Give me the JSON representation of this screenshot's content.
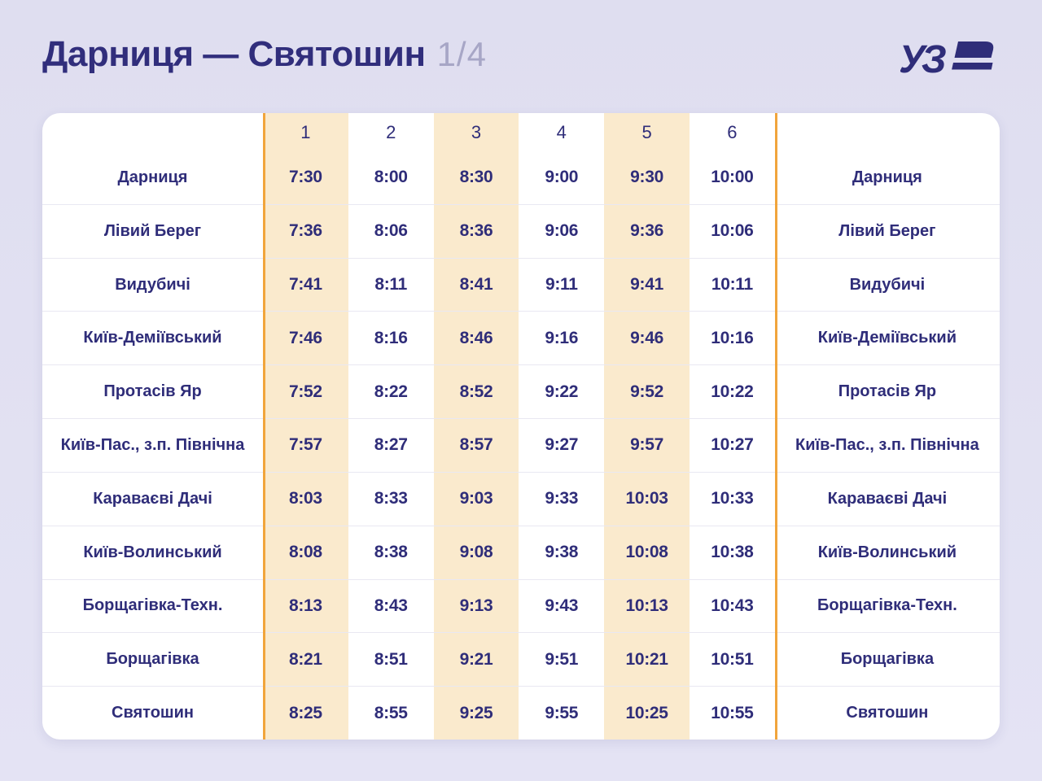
{
  "header": {
    "title": "Дарниця — Святошин",
    "page_indicator": "1/4",
    "logo_text": "УЗ"
  },
  "table": {
    "train_numbers": [
      "1",
      "2",
      "3",
      "4",
      "5",
      "6"
    ],
    "highlight_columns": [
      0,
      2,
      4
    ],
    "rows": [
      {
        "station": "Дарниця",
        "times": [
          "7:30",
          "8:00",
          "8:30",
          "9:00",
          "9:30",
          "10:00"
        ]
      },
      {
        "station": "Лівий Берег",
        "times": [
          "7:36",
          "8:06",
          "8:36",
          "9:06",
          "9:36",
          "10:06"
        ]
      },
      {
        "station": "Видубичі",
        "times": [
          "7:41",
          "8:11",
          "8:41",
          "9:11",
          "9:41",
          "10:11"
        ]
      },
      {
        "station": "Київ-Деміївський",
        "times": [
          "7:46",
          "8:16",
          "8:46",
          "9:16",
          "9:46",
          "10:16"
        ]
      },
      {
        "station": "Протасів Яр",
        "times": [
          "7:52",
          "8:22",
          "8:52",
          "9:22",
          "9:52",
          "10:22"
        ]
      },
      {
        "station": "Київ-Пас., з.п. Північна",
        "times": [
          "7:57",
          "8:27",
          "8:57",
          "9:27",
          "9:57",
          "10:27"
        ]
      },
      {
        "station": "Караваєві Дачі",
        "times": [
          "8:03",
          "8:33",
          "9:03",
          "9:33",
          "10:03",
          "10:33"
        ]
      },
      {
        "station": "Київ-Волинський",
        "times": [
          "8:08",
          "8:38",
          "9:08",
          "9:38",
          "10:08",
          "10:38"
        ]
      },
      {
        "station": "Борщагівка-Техн.",
        "times": [
          "8:13",
          "8:43",
          "9:13",
          "9:43",
          "10:13",
          "10:43"
        ]
      },
      {
        "station": "Борщагівка",
        "times": [
          "8:21",
          "8:51",
          "9:21",
          "9:51",
          "10:21",
          "10:51"
        ]
      },
      {
        "station": "Святошин",
        "times": [
          "8:25",
          "8:55",
          "9:25",
          "9:55",
          "10:25",
          "10:55"
        ]
      }
    ]
  },
  "colors": {
    "text_navy": "#2F2D79",
    "title_navy": "#312E7C",
    "muted_indicator": "#A7A6C6",
    "highlight_cream": "#FAEACD",
    "accent_orange": "#F1A53C",
    "background_lavender": "#DFDEF0",
    "card_white": "#FFFFFF",
    "row_separator": "#E9E8F2"
  }
}
